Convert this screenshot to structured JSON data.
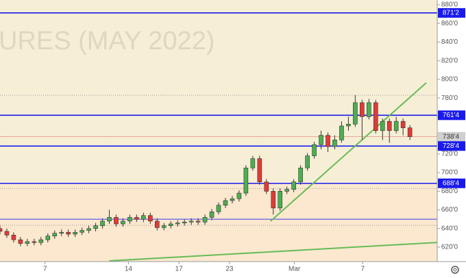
{
  "chart_data": {
    "type": "candlestick",
    "watermark": "URES (MAY 2022)",
    "x": [
      0,
      1,
      2,
      3,
      4,
      5,
      6,
      7,
      8,
      9,
      10,
      11,
      12,
      13,
      14,
      15,
      16,
      17,
      18,
      19,
      20,
      21,
      22,
      23,
      24,
      25,
      26,
      27,
      28,
      29,
      30,
      31,
      32,
      33,
      34,
      35,
      36,
      37,
      38,
      39,
      40,
      41,
      42,
      43,
      44,
      45,
      46,
      47,
      48,
      49,
      50,
      51,
      52,
      53,
      54,
      55,
      56,
      57,
      58,
      59,
      60
    ],
    "open": [
      640,
      637,
      633,
      628,
      624,
      626,
      625,
      628,
      632,
      635,
      636,
      634,
      636,
      638,
      640,
      643,
      648,
      652,
      645,
      648,
      652,
      650,
      654,
      648,
      641,
      643,
      645,
      646,
      647,
      648,
      647,
      652,
      658,
      665,
      670,
      672,
      678,
      705,
      715,
      690,
      680,
      662,
      680,
      682,
      690,
      705,
      718,
      730,
      740,
      728,
      735,
      750,
      752,
      775,
      760,
      775,
      745,
      755,
      745,
      755,
      748
    ],
    "high": [
      643,
      640,
      636,
      631,
      629,
      629,
      631,
      635,
      638,
      639,
      639,
      639,
      641,
      643,
      646,
      651,
      660,
      655,
      651,
      655,
      655,
      657,
      657,
      651,
      646,
      648,
      649,
      650,
      651,
      651,
      655,
      661,
      668,
      673,
      675,
      681,
      708,
      718,
      718,
      693,
      683,
      683,
      685,
      693,
      708,
      721,
      733,
      745,
      743,
      740,
      755,
      760,
      783,
      778,
      779,
      778,
      758,
      758,
      760,
      758,
      751
    ],
    "low": [
      634,
      630,
      625,
      621,
      621,
      622,
      622,
      625,
      629,
      632,
      631,
      631,
      633,
      635,
      637,
      640,
      645,
      642,
      642,
      645,
      647,
      647,
      645,
      638,
      638,
      640,
      642,
      643,
      644,
      644,
      644,
      649,
      655,
      662,
      667,
      669,
      675,
      702,
      687,
      677,
      655,
      659,
      677,
      679,
      687,
      702,
      715,
      725,
      722,
      725,
      732,
      745,
      749,
      735,
      757,
      742,
      735,
      732,
      742,
      740,
      735
    ],
    "close": [
      637,
      633,
      628,
      624,
      626,
      625,
      628,
      632,
      635,
      636,
      634,
      636,
      638,
      640,
      643,
      648,
      652,
      645,
      648,
      652,
      650,
      654,
      648,
      641,
      643,
      645,
      646,
      647,
      648,
      647,
      652,
      658,
      665,
      670,
      672,
      678,
      705,
      715,
      690,
      680,
      662,
      680,
      682,
      690,
      705,
      718,
      730,
      740,
      728,
      735,
      750,
      752,
      775,
      760,
      775,
      745,
      755,
      745,
      755,
      748,
      738.5
    ],
    "up_color": "#4caf50",
    "down_color": "#e53935",
    "xlim": [
      0,
      64
    ],
    "xticks": [
      {
        "value": 6.6,
        "label": "7"
      },
      {
        "value": 18.8,
        "label": "14"
      },
      {
        "value": 26.2,
        "label": "17"
      },
      {
        "value": 33.6,
        "label": "23"
      },
      {
        "value": 43.1,
        "label": "Mar"
      },
      {
        "value": 53.1,
        "label": "7"
      }
    ],
    "ylim": [
      604.6,
      885.1
    ],
    "yticks": [
      {
        "value": 620,
        "label": "620'0"
      },
      {
        "value": 640,
        "label": "640'0"
      },
      {
        "value": 660,
        "label": "660'0"
      },
      {
        "value": 680,
        "label": "680'0"
      },
      {
        "value": 700,
        "label": "700'0"
      },
      {
        "value": 720,
        "label": "720'0"
      },
      {
        "value": 740,
        "label": "740'0"
      },
      {
        "value": 760,
        "label": "760'0"
      },
      {
        "value": 780,
        "label": "780'0"
      },
      {
        "value": 800,
        "label": "800'0"
      },
      {
        "value": 820,
        "label": "820'0"
      },
      {
        "value": 840,
        "label": "840'0"
      },
      {
        "value": 860,
        "label": "860'0"
      },
      {
        "value": 880,
        "label": "880'0"
      }
    ],
    "levels": [
      {
        "value": 871.25,
        "label": "871'2",
        "color": "#1a1aee"
      },
      {
        "value": 761.5,
        "label": "761'4",
        "color": "#1a1aee"
      },
      {
        "value": 728.5,
        "label": "728'4",
        "color": "#1a1aee"
      },
      {
        "value": 688.5,
        "label": "688'4",
        "color": "#1a1aee"
      }
    ],
    "thin_level": {
      "value": 650,
      "color": "#3b3bee"
    },
    "last_price": {
      "value": 738.5,
      "label": "738'4",
      "color": "#d32f2f"
    },
    "dotted_levels": [
      783,
      683,
      643.5
    ],
    "trendlines": [
      {
        "x": [
          39.6,
          62.4
        ],
        "y": [
          647.9,
          796.3
        ],
        "color": "#66bb55"
      },
      {
        "x": [
          16.0,
          64
        ],
        "y": [
          605.3,
          625.1
        ],
        "color": "#66bb55"
      }
    ]
  }
}
